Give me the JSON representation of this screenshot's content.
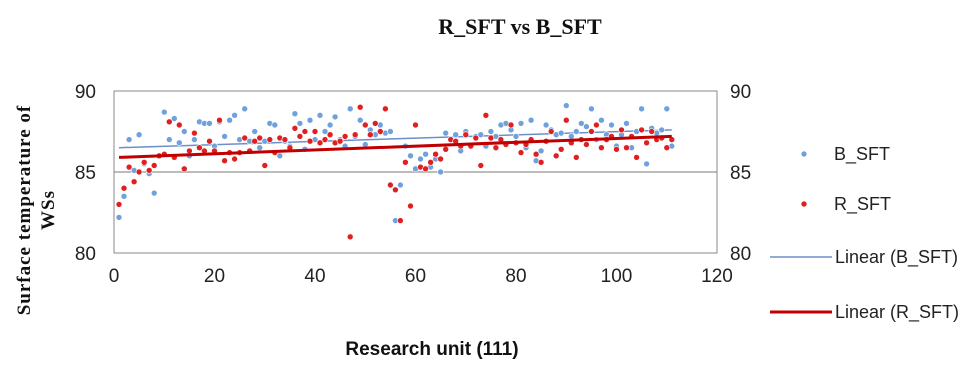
{
  "chart_data": {
    "type": "scatter",
    "title": "R_SFT vs B_SFT",
    "xlabel": "Research unit (111)",
    "ylabel_line1": "Surface temperature of",
    "ylabel_line2": "WSs",
    "xlim": [
      0,
      120
    ],
    "ylim": [
      80,
      90
    ],
    "xticks": [
      "0",
      "20",
      "40",
      "60",
      "80",
      "100",
      "120"
    ],
    "yticks_left": [
      "80",
      "85",
      "90"
    ],
    "yticks_right": [
      "80",
      "85",
      "90"
    ],
    "grid": "horizontal at 85 only",
    "legend_position": "right",
    "series": [
      {
        "name": "B_SFT",
        "kind": "points",
        "color": "#6fa1dd",
        "x": [
          1,
          2,
          3,
          4,
          5,
          6,
          7,
          8,
          9,
          10,
          11,
          12,
          13,
          14,
          15,
          16,
          17,
          18,
          19,
          20,
          21,
          22,
          23,
          24,
          25,
          26,
          27,
          28,
          29,
          30,
          31,
          32,
          33,
          34,
          35,
          36,
          37,
          38,
          39,
          40,
          41,
          42,
          43,
          44,
          45,
          46,
          47,
          48,
          49,
          50,
          51,
          52,
          53,
          54,
          55,
          56,
          57,
          58,
          59,
          60,
          61,
          62,
          63,
          64,
          65,
          66,
          67,
          68,
          69,
          70,
          71,
          72,
          73,
          74,
          75,
          76,
          77,
          78,
          79,
          80,
          81,
          82,
          83,
          84,
          85,
          86,
          87,
          88,
          89,
          90,
          91,
          92,
          93,
          94,
          95,
          96,
          97,
          98,
          99,
          100,
          101,
          102,
          103,
          104,
          105,
          106,
          107,
          108,
          109,
          110,
          111
        ],
        "y": [
          82.2,
          83.5,
          87.0,
          85.1,
          87.3,
          85.5,
          84.9,
          83.7,
          86.0,
          88.7,
          87.0,
          88.3,
          86.8,
          87.5,
          86.0,
          87.0,
          88.1,
          88.0,
          88.0,
          86.6,
          88.1,
          87.2,
          88.2,
          88.5,
          87.0,
          88.9,
          86.9,
          87.5,
          86.5,
          86.9,
          88.0,
          87.9,
          86.0,
          86.9,
          86.6,
          88.6,
          88.0,
          86.4,
          88.2,
          87.0,
          88.5,
          87.5,
          87.9,
          88.4,
          87.0,
          86.6,
          88.9,
          87.2,
          88.2,
          86.7,
          87.6,
          87.3,
          87.9,
          87.4,
          87.5,
          82.0,
          84.2,
          86.6,
          86.0,
          85.2,
          85.8,
          86.1,
          85.3,
          85.8,
          85.0,
          87.4,
          87.0,
          87.3,
          86.3,
          87.5,
          86.6,
          87.2,
          87.3,
          86.6,
          87.5,
          87.2,
          87.9,
          88.0,
          87.6,
          87.2,
          88.0,
          86.5,
          88.2,
          85.7,
          86.3,
          87.9,
          87.6,
          87.3,
          87.4,
          89.1,
          87.2,
          87.5,
          88.0,
          87.8,
          88.9,
          87.0,
          88.2,
          87.3,
          87.9,
          86.6,
          87.3,
          88.0,
          86.5,
          87.5,
          88.9,
          85.5,
          87.7,
          87.4,
          87.6,
          88.9,
          86.6
        ]
      },
      {
        "name": "R_SFT",
        "kind": "points",
        "color": "#e02020",
        "x": [
          1,
          2,
          3,
          4,
          5,
          6,
          7,
          8,
          9,
          10,
          11,
          12,
          13,
          14,
          15,
          16,
          17,
          18,
          19,
          20,
          21,
          22,
          23,
          24,
          25,
          26,
          27,
          28,
          29,
          30,
          31,
          32,
          33,
          34,
          35,
          36,
          37,
          38,
          39,
          40,
          41,
          42,
          43,
          44,
          45,
          46,
          47,
          48,
          49,
          50,
          51,
          52,
          53,
          54,
          55,
          56,
          57,
          58,
          59,
          60,
          61,
          62,
          63,
          64,
          65,
          66,
          67,
          68,
          69,
          70,
          71,
          72,
          73,
          74,
          75,
          76,
          77,
          78,
          79,
          80,
          81,
          82,
          83,
          84,
          85,
          86,
          87,
          88,
          89,
          90,
          91,
          92,
          93,
          94,
          95,
          96,
          97,
          98,
          99,
          100,
          101,
          102,
          103,
          104,
          105,
          106,
          107,
          108,
          109,
          110,
          111
        ],
        "y": [
          83.0,
          84.0,
          85.3,
          84.4,
          85.0,
          85.6,
          85.1,
          85.4,
          86.0,
          86.1,
          88.1,
          85.9,
          87.9,
          85.2,
          86.3,
          87.4,
          86.5,
          86.3,
          86.9,
          86.3,
          88.2,
          85.7,
          86.2,
          85.8,
          86.2,
          87.1,
          86.3,
          86.9,
          87.1,
          85.4,
          87.0,
          86.2,
          87.1,
          87.0,
          86.5,
          87.7,
          87.2,
          87.5,
          86.9,
          87.5,
          86.8,
          87.0,
          87.3,
          86.8,
          86.9,
          87.2,
          81.0,
          87.3,
          89.0,
          87.9,
          87.3,
          88.0,
          87.5,
          88.9,
          84.2,
          83.9,
          82.0,
          85.6,
          82.9,
          87.9,
          85.3,
          85.2,
          85.6,
          86.1,
          85.8,
          86.4,
          87.0,
          86.9,
          86.6,
          87.3,
          86.6,
          87.1,
          85.4,
          88.5,
          87.1,
          86.5,
          87.0,
          86.7,
          87.9,
          86.8,
          86.2,
          86.7,
          87.0,
          86.1,
          85.6,
          86.9,
          87.5,
          86.0,
          86.4,
          88.2,
          86.8,
          85.9,
          87.0,
          86.7,
          87.5,
          87.9,
          86.5,
          87.0,
          87.2,
          86.4,
          87.6,
          86.5,
          87.2,
          85.9,
          87.6,
          86.8,
          87.5,
          87.0,
          87.1,
          86.5,
          87.0
        ]
      },
      {
        "name": "Linear (B_SFT)",
        "kind": "trendline",
        "color": "#6d8fc9",
        "x": [
          1,
          111
        ],
        "y": [
          86.5,
          87.6
        ]
      },
      {
        "name": "Linear (R_SFT)",
        "kind": "trendline",
        "color": "#c00000",
        "x": [
          1,
          111
        ],
        "y": [
          85.9,
          87.2
        ]
      }
    ]
  }
}
